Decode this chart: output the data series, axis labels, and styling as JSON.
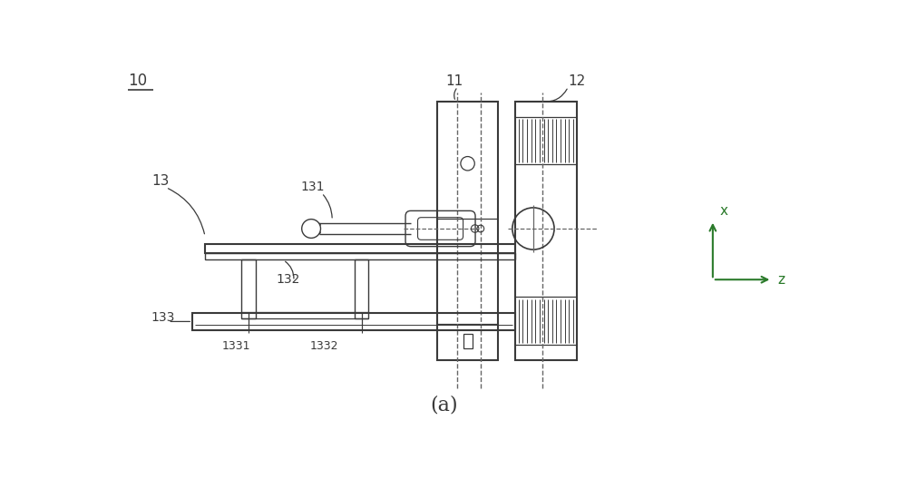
{
  "fig_width": 10.0,
  "fig_height": 5.28,
  "dpi": 100,
  "bg_color": "#ffffff",
  "line_color": "#3a3a3a",
  "green_color": "#2a7a2a",
  "label_10": "10",
  "label_11": "11",
  "label_12": "12",
  "label_13": "13",
  "label_131": "131",
  "label_132": "132",
  "label_133": "133",
  "label_1331": "1331",
  "label_1332": "1332",
  "label_a": "(a)",
  "label_x": "x",
  "label_z": "z",
  "xlim": [
    0,
    10
  ],
  "ylim": [
    0,
    5.28
  ]
}
